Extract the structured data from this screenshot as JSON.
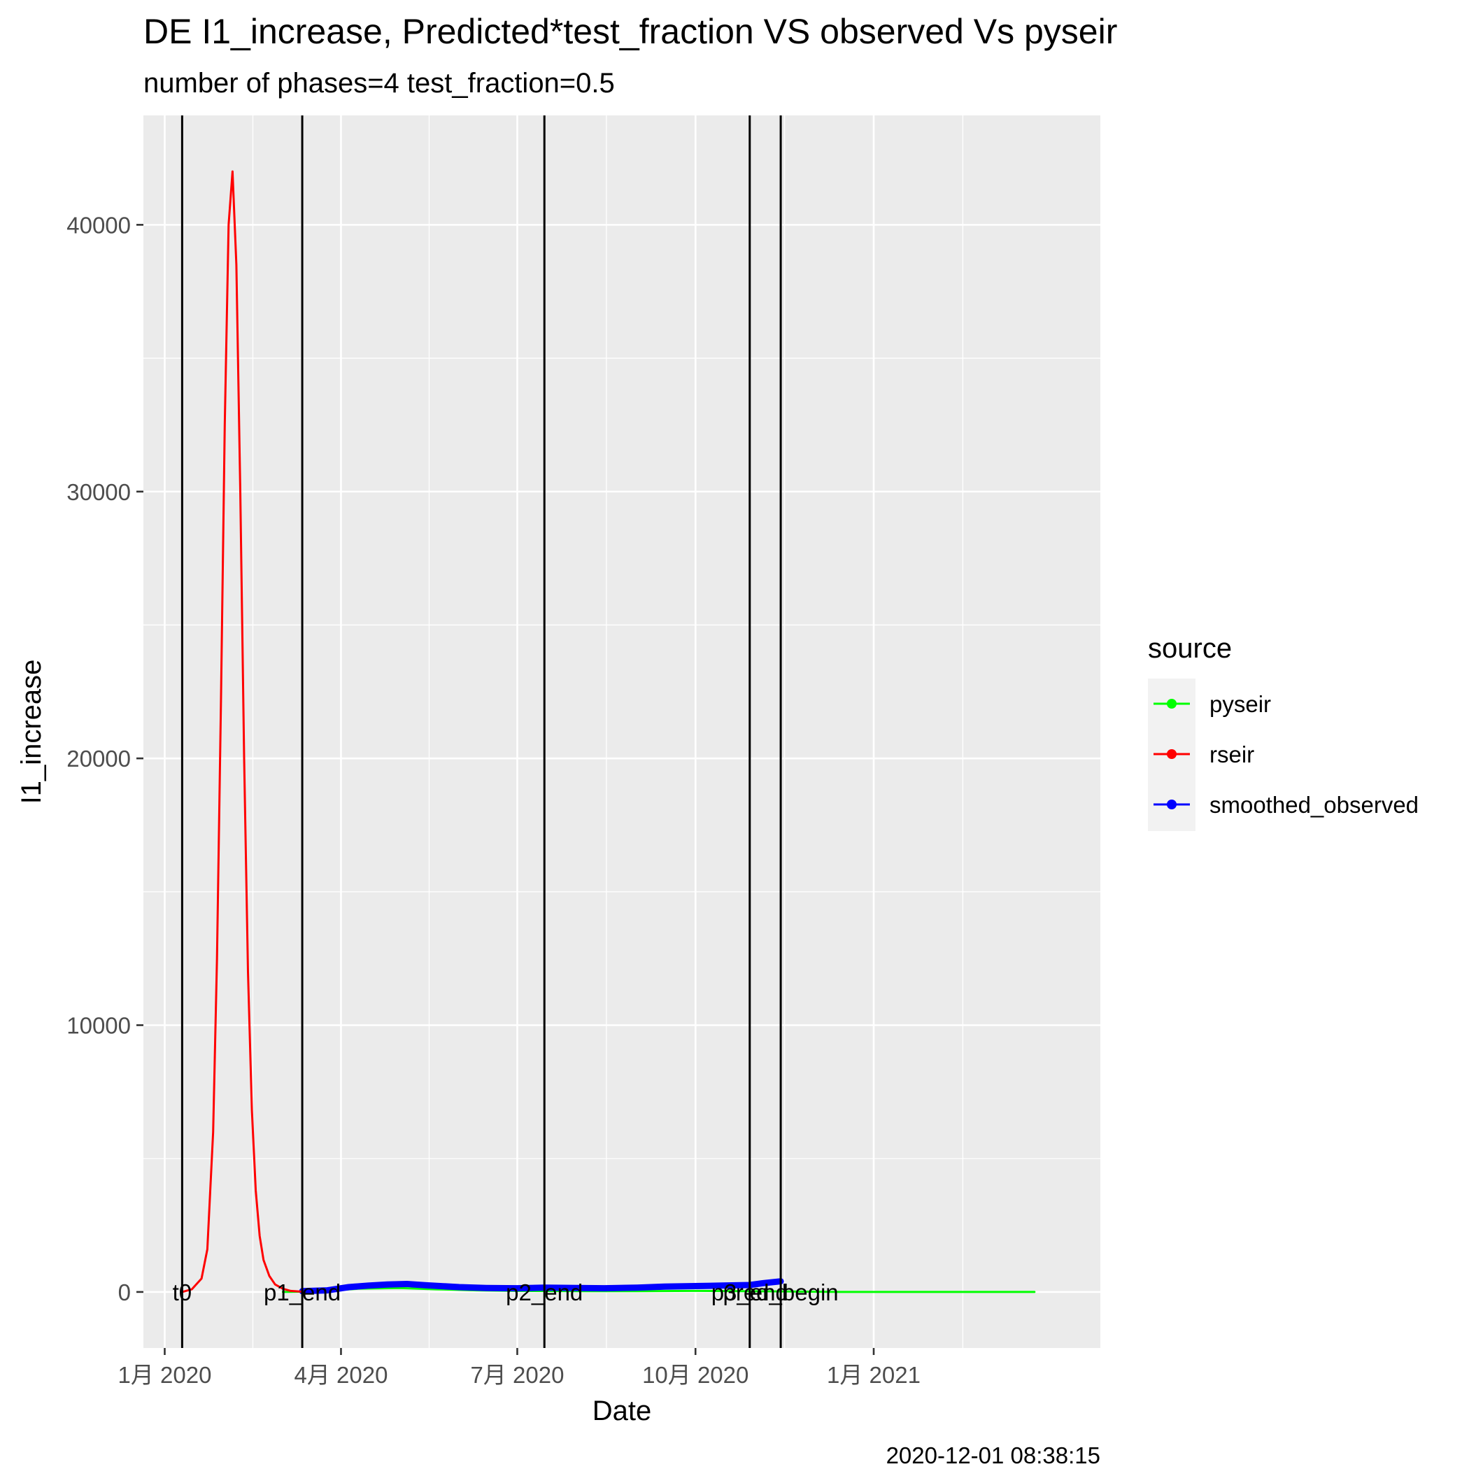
{
  "chart_data": {
    "type": "line",
    "title": "DE I1_increase, Predicted*test_fraction VS observed Vs pyseir",
    "subtitle": "number of phases=4   test_fraction=0.5",
    "xlabel": "Date",
    "ylabel": "I1_increase",
    "caption": "2020-12-01 08:38:15",
    "x_ticks": [
      {
        "date": "2020-01-01",
        "label": "1月 2020"
      },
      {
        "date": "2020-04-01",
        "label": "4月 2020"
      },
      {
        "date": "2020-07-01",
        "label": "7月 2020"
      },
      {
        "date": "2020-10-01",
        "label": "10月 2020"
      },
      {
        "date": "2021-01-01",
        "label": "1月 2021"
      }
    ],
    "xlim": [
      "2019-12-21",
      "2021-04-28"
    ],
    "y_ticks": [
      0,
      10000,
      20000,
      30000,
      40000
    ],
    "ylim": [
      -2100,
      44100
    ],
    "grid": true,
    "legend": {
      "title": "source",
      "placement": "right",
      "entries": [
        {
          "name": "pyseir",
          "color": "#00ff00"
        },
        {
          "name": "rseir",
          "color": "#ff0000"
        },
        {
          "name": "smoothed_observed",
          "color": "#0000ff"
        }
      ]
    },
    "vlines": [
      {
        "date": "2020-01-10",
        "label": "t0"
      },
      {
        "date": "2020-03-12",
        "label": "p1_end"
      },
      {
        "date": "2020-07-15",
        "label": "p2_end"
      },
      {
        "date": "2020-10-29",
        "label": "p3_end"
      },
      {
        "date": "2020-11-14",
        "label": "pred_begin"
      }
    ],
    "series": [
      {
        "name": "rseir",
        "color": "#ff0000",
        "x": [
          "2020-01-10",
          "2020-01-15",
          "2020-01-20",
          "2020-01-23",
          "2020-01-26",
          "2020-01-28",
          "2020-01-30",
          "2020-02-01",
          "2020-02-03",
          "2020-02-05",
          "2020-02-07",
          "2020-02-09",
          "2020-02-11",
          "2020-02-13",
          "2020-02-15",
          "2020-02-17",
          "2020-02-19",
          "2020-02-21",
          "2020-02-24",
          "2020-02-27",
          "2020-03-02",
          "2020-03-06",
          "2020-03-12"
        ],
        "values": [
          0,
          100,
          500,
          1600,
          6000,
          12500,
          22000,
          32500,
          40000,
          42000,
          38500,
          30000,
          20000,
          12000,
          6800,
          3800,
          2100,
          1200,
          600,
          280,
          120,
          40,
          10
        ]
      },
      {
        "name": "pyseir",
        "color": "#00ff00",
        "x": [
          "2020-03-02",
          "2020-03-20",
          "2020-04-10",
          "2020-05-01",
          "2020-05-20",
          "2020-06-10",
          "2020-07-01",
          "2020-08-01",
          "2020-09-01",
          "2020-10-01",
          "2020-11-14",
          "2020-12-15",
          "2021-01-15",
          "2021-02-15",
          "2021-03-25"
        ],
        "values": [
          0,
          20,
          120,
          150,
          100,
          60,
          40,
          30,
          30,
          40,
          20,
          0,
          0,
          0,
          0
        ]
      },
      {
        "name": "smoothed_observed",
        "color": "#0000ff",
        "x": [
          "2020-03-12",
          "2020-03-25",
          "2020-04-05",
          "2020-04-15",
          "2020-04-25",
          "2020-05-05",
          "2020-05-15",
          "2020-06-01",
          "2020-06-15",
          "2020-07-01",
          "2020-07-15",
          "2020-08-01",
          "2020-08-15",
          "2020-09-01",
          "2020-09-15",
          "2020-10-01",
          "2020-10-15",
          "2020-10-29",
          "2020-11-05",
          "2020-11-14"
        ],
        "values": [
          30,
          60,
          180,
          240,
          280,
          300,
          250,
          180,
          150,
          140,
          160,
          150,
          140,
          160,
          200,
          220,
          240,
          260,
          330,
          400
        ]
      }
    ]
  }
}
